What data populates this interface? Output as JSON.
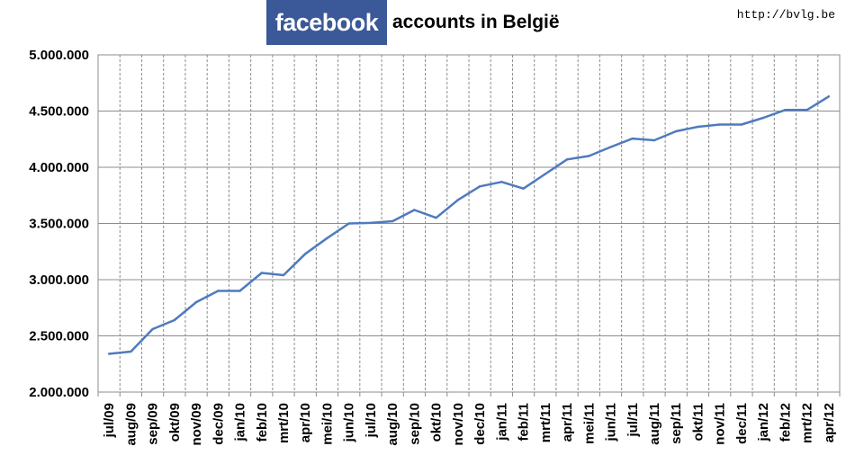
{
  "header": {
    "logo_text": "facebook",
    "title_rest": "accounts in België",
    "url": "http://bvlg.be"
  },
  "colors": {
    "logo_bg": "#3b5998",
    "line": "#4f7bbd",
    "grid": "#8c8c8c"
  },
  "chart_data": {
    "type": "line",
    "title": "facebook accounts in België",
    "xlabel": "",
    "ylabel": "",
    "ylim": [
      2000000,
      5000000
    ],
    "yticks": [
      {
        "value": 2000000,
        "label": "2.000.000"
      },
      {
        "value": 2500000,
        "label": "2.500.000"
      },
      {
        "value": 3000000,
        "label": "3.000.000"
      },
      {
        "value": 3500000,
        "label": "3.500.000"
      },
      {
        "value": 4000000,
        "label": "4.000.000"
      },
      {
        "value": 4500000,
        "label": "4.500.000"
      },
      {
        "value": 5000000,
        "label": "5.000.000"
      }
    ],
    "grid": true,
    "legend": "none",
    "categories": [
      "jul/09",
      "aug/09",
      "sep/09",
      "okt/09",
      "nov/09",
      "dec/09",
      "jan/10",
      "feb/10",
      "mrt/10",
      "apr/10",
      "mei/10",
      "jun/10",
      "jul/10",
      "aug/10",
      "sep/10",
      "okt/10",
      "nov/10",
      "dec/10",
      "jan/11",
      "feb/11",
      "mrt/11",
      "apr/11",
      "mei/11",
      "jun/11",
      "jul/11",
      "aug/11",
      "sep/11",
      "okt/11",
      "nov/11",
      "dec/11",
      "jan/12",
      "feb/12",
      "mrt/12",
      "apr/12"
    ],
    "series": [
      {
        "values": [
          2340000,
          2360000,
          2560000,
          2640000,
          2800000,
          2900000,
          2900000,
          3060000,
          3040000,
          3230000,
          3370000,
          3500000,
          3505000,
          3520000,
          3620000,
          3550000,
          3710000,
          3830000,
          3870000,
          3810000,
          3940000,
          4070000,
          4100000,
          4180000,
          4255000,
          4240000,
          4320000,
          4360000,
          4380000,
          4380000,
          4440000,
          4510000,
          4510000,
          4630000
        ]
      }
    ]
  }
}
